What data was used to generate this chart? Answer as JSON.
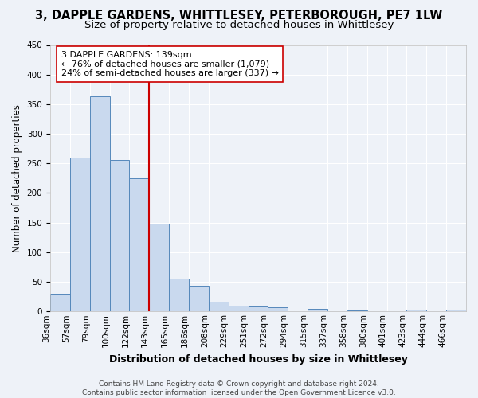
{
  "title": "3, DAPPLE GARDENS, WHITTLESEY, PETERBOROUGH, PE7 1LW",
  "subtitle": "Size of property relative to detached houses in Whittlesey",
  "xlabel": "Distribution of detached houses by size in Whittlesey",
  "ylabel": "Number of detached properties",
  "bar_values": [
    30,
    260,
    363,
    256,
    225,
    148,
    56,
    44,
    16,
    10,
    9,
    7,
    0,
    5,
    0,
    2,
    0,
    0,
    3,
    0,
    3
  ],
  "bar_labels": [
    "36sqm",
    "57sqm",
    "79sqm",
    "100sqm",
    "122sqm",
    "143sqm",
    "165sqm",
    "186sqm",
    "208sqm",
    "229sqm",
    "251sqm",
    "272sqm",
    "294sqm",
    "315sqm",
    "337sqm",
    "358sqm",
    "380sqm",
    "401sqm",
    "423sqm",
    "444sqm",
    "466sqm"
  ],
  "bar_color": "#c9d9ee",
  "bar_edge_color": "#5588bb",
  "reference_line_color": "#cc0000",
  "reference_line_x": 5.0,
  "annotation_text": "3 DAPPLE GARDENS: 139sqm\n← 76% of detached houses are smaller (1,079)\n24% of semi-detached houses are larger (337) →",
  "annotation_box_facecolor": "#ffffff",
  "annotation_box_edgecolor": "#cc0000",
  "ylim": [
    0,
    450
  ],
  "yticks": [
    0,
    50,
    100,
    150,
    200,
    250,
    300,
    350,
    400,
    450
  ],
  "footer": "Contains HM Land Registry data © Crown copyright and database right 2024.\nContains public sector information licensed under the Open Government Licence v3.0.",
  "background_color": "#eef2f8",
  "grid_color": "#ffffff",
  "title_fontsize": 10.5,
  "subtitle_fontsize": 9.5,
  "xlabel_fontsize": 9,
  "ylabel_fontsize": 8.5,
  "tick_fontsize": 7.5,
  "annotation_fontsize": 8,
  "footer_fontsize": 6.5
}
